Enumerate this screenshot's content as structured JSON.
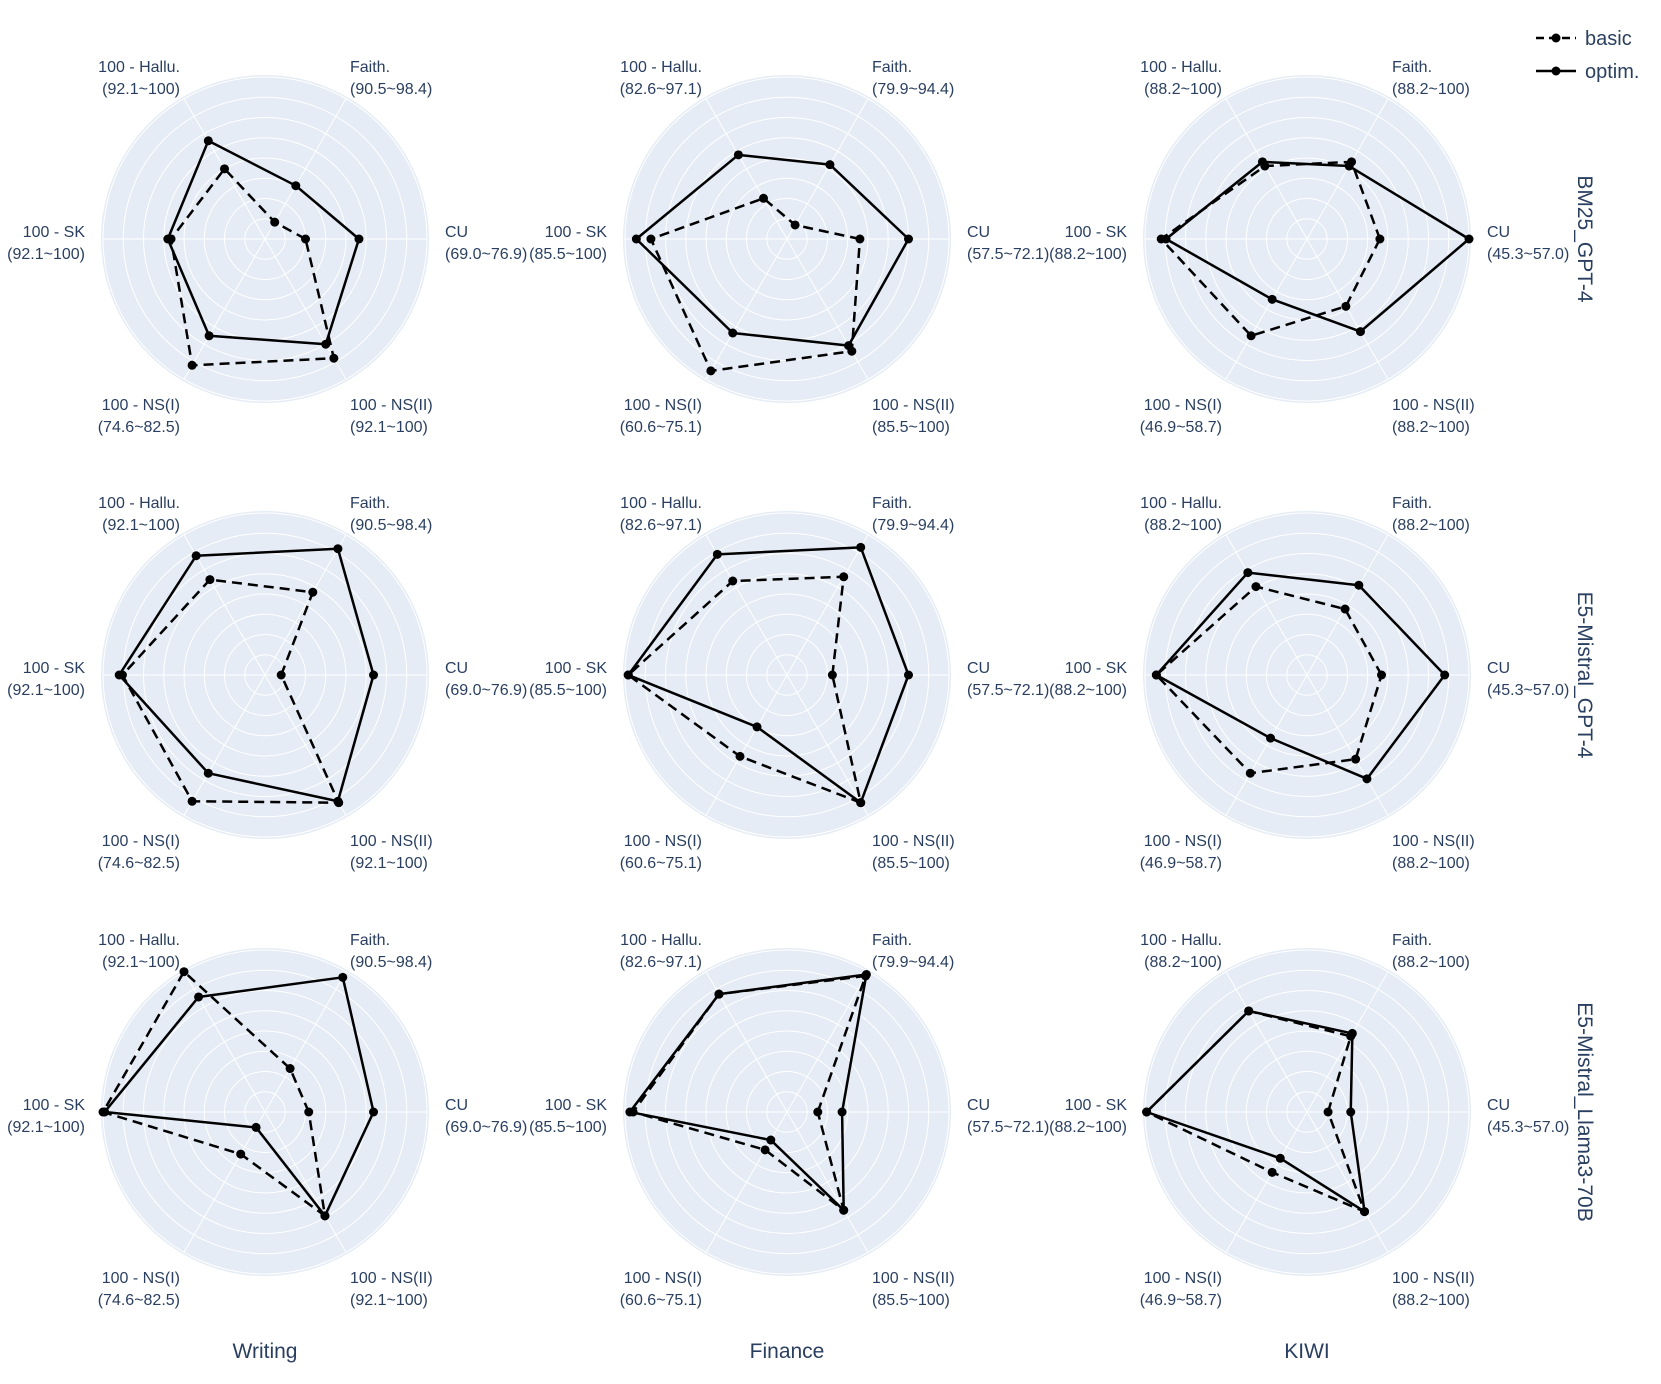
{
  "legend": [
    {
      "name": "basic",
      "dash": true
    },
    {
      "name": "optim.",
      "dash": false
    }
  ],
  "column_titles": [
    "Writing",
    "Finance",
    "KIWI"
  ],
  "row_titles": [
    "BM25_GPT-4",
    "E5-Mistral_GPT-4",
    "E5-Mistral_Llama3-70B"
  ],
  "axis_names": [
    "CU",
    "Faith.",
    "100 - Hallu.",
    "100 - SK",
    "100 - NS(I)",
    "100 - NS(II)"
  ],
  "axis_ranges": {
    "Writing": [
      "(69.0~76.9)",
      "(90.5~98.4)",
      "(92.1~100)",
      "(92.1~100)",
      "(74.6~82.5)",
      "(92.1~100)"
    ],
    "Finance": [
      "(57.5~72.1)",
      "(79.9~94.4)",
      "(82.6~97.1)",
      "(85.5~100)",
      "(60.6~75.1)",
      "(85.5~100)"
    ],
    "KIWI": [
      "(45.3~57.0)",
      "(88.2~100)",
      "(88.2~100)",
      "(88.2~100)",
      "(46.9~58.7)",
      "(88.2~100)"
    ]
  },
  "colors": {
    "polar_bg": "#e5ecf6",
    "grid": "#ffffff",
    "line": "#000000",
    "text": "#2a3f5f"
  },
  "chart_data": {
    "type": "radar",
    "note_units": "normalized fraction of each axis range (0 = min, 1 = max), axis order CU, Faith., 100 - Hallu., 100 - SK, 100 - NS(I), 100 - NS(II)",
    "panels": [
      {
        "row": "BM25_GPT-4",
        "col": "Writing",
        "series": [
          {
            "name": "basic",
            "values": [
              0.25,
              0.12,
              0.5,
              0.58,
              0.9,
              0.85
            ]
          },
          {
            "name": "optim.",
            "values": [
              0.58,
              0.38,
              0.7,
              0.6,
              0.69,
              0.75
            ]
          }
        ]
      },
      {
        "row": "BM25_GPT-4",
        "col": "Finance",
        "series": [
          {
            "name": "basic",
            "values": [
              0.45,
              0.1,
              0.29,
              0.84,
              0.94,
              0.8
            ]
          },
          {
            "name": "optim.",
            "values": [
              0.75,
              0.53,
              0.6,
              0.93,
              0.67,
              0.76
            ]
          }
        ]
      },
      {
        "row": "BM25_GPT-4",
        "col": "KIWI",
        "series": [
          {
            "name": "basic",
            "values": [
              0.45,
              0.55,
              0.52,
              0.9,
              0.69,
              0.48
            ]
          },
          {
            "name": "optim.",
            "values": [
              1.0,
              0.52,
              0.55,
              0.87,
              0.43,
              0.66
            ]
          }
        ]
      },
      {
        "row": "E5-Mistral_GPT-4",
        "col": "Writing",
        "series": [
          {
            "name": "basic",
            "values": [
              0.1,
              0.59,
              0.68,
              0.88,
              0.9,
              0.91
            ]
          },
          {
            "name": "optim.",
            "values": [
              0.67,
              0.9,
              0.85,
              0.9,
              0.7,
              0.9
            ]
          }
        ]
      },
      {
        "row": "E5-Mistral_GPT-4",
        "col": "Finance",
        "series": [
          {
            "name": "basic",
            "values": [
              0.28,
              0.7,
              0.67,
              0.98,
              0.58,
              0.91
            ]
          },
          {
            "name": "optim.",
            "values": [
              0.75,
              0.91,
              0.86,
              0.98,
              0.37,
              0.91
            ]
          }
        ]
      },
      {
        "row": "E5-Mistral_GPT-4",
        "col": "KIWI",
        "series": [
          {
            "name": "basic",
            "values": [
              0.46,
              0.47,
              0.63,
              0.93,
              0.7,
              0.6
            ]
          },
          {
            "name": "optim.",
            "values": [
              0.85,
              0.64,
              0.73,
              0.93,
              0.45,
              0.74
            ]
          }
        ]
      },
      {
        "row": "E5-Mistral_Llama3-70B",
        "col": "Writing",
        "series": [
          {
            "name": "basic",
            "values": [
              0.27,
              0.31,
              1.0,
              1.0,
              0.3,
              0.74
            ]
          },
          {
            "name": "optim.",
            "values": [
              0.67,
              0.96,
              0.82,
              0.99,
              0.11,
              0.74
            ]
          }
        ]
      },
      {
        "row": "E5-Mistral_Llama3-70B",
        "col": "Finance",
        "series": [
          {
            "name": "basic",
            "values": [
              0.19,
              0.97,
              0.84,
              0.95,
              0.27,
              0.7
            ]
          },
          {
            "name": "optim.",
            "values": [
              0.34,
              0.98,
              0.84,
              0.97,
              0.2,
              0.7
            ]
          }
        ]
      },
      {
        "row": "E5-Mistral_Llama3-70B",
        "col": "KIWI",
        "series": [
          {
            "name": "basic",
            "values": [
              0.13,
              0.54,
              0.72,
              0.99,
              0.43,
              0.71
            ]
          },
          {
            "name": "optim.",
            "values": [
              0.27,
              0.56,
              0.72,
              0.99,
              0.33,
              0.71
            ]
          }
        ]
      }
    ]
  }
}
